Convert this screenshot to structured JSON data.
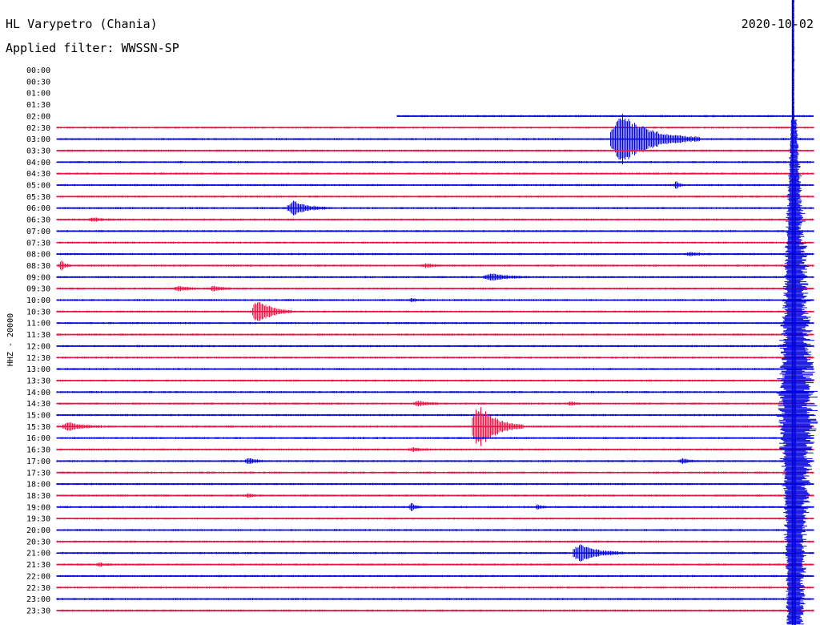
{
  "header": {
    "station": "HL Varypetro (Chania)",
    "date": "2020-10-02",
    "filter": "Applied filter: WWSSN-SP"
  },
  "chart_data": {
    "type": "helicorder",
    "title": "HL Varypetro (Chania)",
    "date": "2020-10-02",
    "filter": "WWSSN-SP",
    "ylabel": "HHZ - 20000",
    "trace_start": "02:00",
    "row_minutes": 30,
    "ticks": [
      "00:00",
      "00:30",
      "01:00",
      "01:30",
      "02:00",
      "02:30",
      "03:00",
      "03:30",
      "04:00",
      "04:30",
      "05:00",
      "05:30",
      "06:00",
      "06:30",
      "07:00",
      "07:30",
      "08:00",
      "08:30",
      "09:00",
      "09:30",
      "10:00",
      "10:30",
      "11:00",
      "11:30",
      "12:00",
      "12:30",
      "13:00",
      "13:30",
      "14:00",
      "14:30",
      "15:00",
      "15:30",
      "16:00",
      "16:30",
      "17:00",
      "17:30",
      "18:00",
      "18:30",
      "19:00",
      "19:30",
      "20:00",
      "20:30",
      "21:00",
      "21:30",
      "22:00",
      "22:30",
      "23:00",
      "23:30"
    ],
    "colors": {
      "even_row": "#0000dd",
      "odd_row": "#ee1144"
    },
    "events": [
      {
        "row": "03:00",
        "minute": 22.0,
        "amp": 32,
        "dur": 3.5
      },
      {
        "row": "06:00",
        "minute": 9.2,
        "amp": 9,
        "dur": 1.5
      },
      {
        "row": "10:30",
        "minute": 7.8,
        "amp": 16,
        "dur": 1.5
      },
      {
        "row": "15:30",
        "minute": 16.5,
        "amp": 28,
        "dur": 2.0
      },
      {
        "row": "21:00",
        "minute": 20.5,
        "amp": 11,
        "dur": 2.0
      },
      {
        "row": "09:00",
        "minute": 17.0,
        "amp": 4,
        "dur": 1.8
      },
      {
        "row": "17:00",
        "minute": 7.5,
        "amp": 4,
        "dur": 0.8
      },
      {
        "row": "17:00",
        "minute": 24.7,
        "amp": 3,
        "dur": 0.8
      },
      {
        "row": "19:00",
        "minute": 14.0,
        "amp": 6,
        "dur": 0.4
      },
      {
        "row": "19:00",
        "minute": 19.0,
        "amp": 3,
        "dur": 0.5
      },
      {
        "row": "08:30",
        "minute": 0.1,
        "amp": 6,
        "dur": 0.5
      },
      {
        "row": "15:30",
        "minute": 0.3,
        "amp": 5,
        "dur": 1.5
      },
      {
        "row": "05:00",
        "minute": 24.5,
        "amp": 5,
        "dur": 0.4
      },
      {
        "row": "14:30",
        "minute": 14.2,
        "amp": 3,
        "dur": 1.0
      },
      {
        "row": "14:30",
        "minute": 20.3,
        "amp": 3,
        "dur": 0.5
      },
      {
        "row": "09:30",
        "minute": 4.7,
        "amp": 3,
        "dur": 1.0
      },
      {
        "row": "09:30",
        "minute": 6.1,
        "amp": 3,
        "dur": 1.0
      },
      {
        "row": "06:30",
        "minute": 1.3,
        "amp": 2,
        "dur": 1.0
      },
      {
        "row": "21:30",
        "minute": 1.6,
        "amp": 2,
        "dur": 0.6
      },
      {
        "row": "18:30",
        "minute": 7.5,
        "amp": 2,
        "dur": 0.6
      },
      {
        "row": "08:30",
        "minute": 14.5,
        "amp": 2,
        "dur": 1.0
      },
      {
        "row": "10:00",
        "minute": 14.0,
        "amp": 2,
        "dur": 0.6
      },
      {
        "row": "08:00",
        "minute": 25.0,
        "amp": 2,
        "dur": 1.0
      },
      {
        "row": "16:30",
        "minute": 14.0,
        "amp": 2,
        "dur": 1.0
      }
    ],
    "mainshock": {
      "minute": 29.2,
      "onset_row": "02:30",
      "peak_row": "15:30"
    }
  }
}
